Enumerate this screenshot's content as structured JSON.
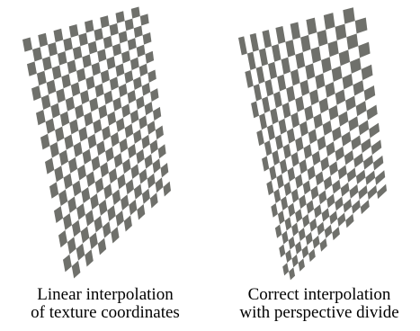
{
  "panels": [
    {
      "id": "linear",
      "caption_line1": "Linear interpolation",
      "caption_line2": "of texture coordinates",
      "method": "affine",
      "checker_columns": 16,
      "checker_rows": 20
    },
    {
      "id": "perspective",
      "caption_line1": "Correct interpolation",
      "caption_line2": "with perspective divide",
      "method": "perspective",
      "checker_columns": 16,
      "checker_rows": 20
    }
  ],
  "colors": {
    "checker_dark": "#6f706b",
    "checker_light": "#ffffff",
    "background": "#ffffff",
    "caption_text": "#000000"
  }
}
